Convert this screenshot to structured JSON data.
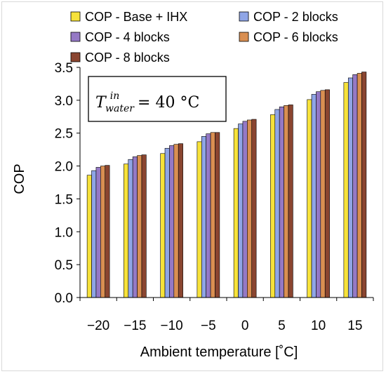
{
  "chart_data": {
    "type": "bar",
    "categories": [
      "−20",
      "−15",
      "−10",
      "−5",
      "0",
      "5",
      "10",
      "15"
    ],
    "xlabel": "Ambient temperature [˚C]",
    "ylabel": "COP",
    "ylim": [
      0,
      3.5
    ],
    "yticks": [
      "0.0",
      "0.5",
      "1.0",
      "1.5",
      "2.0",
      "2.5",
      "3.0",
      "3.5"
    ],
    "grid": false,
    "legend_position": "top",
    "series": [
      {
        "name": "COP - Base + IHX",
        "color": "#f7e23a",
        "values": [
          1.86,
          2.03,
          2.19,
          2.37,
          2.57,
          2.78,
          3.01,
          3.27
        ]
      },
      {
        "name": "COP - 2 blocks",
        "color": "#8fa5e6",
        "values": [
          1.93,
          2.1,
          2.27,
          2.45,
          2.64,
          2.86,
          3.09,
          3.34
        ]
      },
      {
        "name": "COP - 4 blocks",
        "color": "#9579c5",
        "values": [
          1.98,
          2.14,
          2.31,
          2.49,
          2.68,
          2.9,
          3.13,
          3.39
        ]
      },
      {
        "name": "COP - 6 blocks",
        "color": "#d98f52",
        "values": [
          2.0,
          2.16,
          2.33,
          2.51,
          2.7,
          2.92,
          3.15,
          3.41
        ]
      },
      {
        "name": "COP - 8 blocks",
        "color": "#8a4530",
        "values": [
          2.01,
          2.17,
          2.34,
          2.51,
          2.71,
          2.93,
          3.16,
          3.43
        ]
      }
    ],
    "annotation": {
      "var": "T",
      "sup": "in",
      "sub": "water",
      "rest": " = 40 °C"
    }
  }
}
